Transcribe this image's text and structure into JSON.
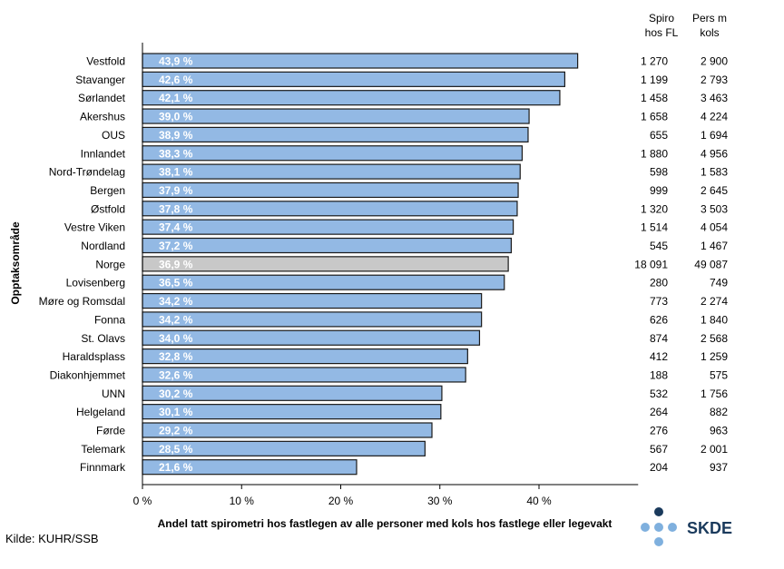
{
  "chart_data": {
    "type": "bar",
    "orientation": "horizontal",
    "categories": [
      "Vestfold",
      "Stavanger",
      "Sørlandet",
      "Akershus",
      "OUS",
      "Innlandet",
      "Nord-Trøndelag",
      "Bergen",
      "Østfold",
      "Vestre Viken",
      "Nordland",
      "Norge",
      "Lovisenberg",
      "Møre og Romsdal",
      "Fonna",
      "St. Olavs",
      "Haraldsplass",
      "Diakonhjemmet",
      "UNN",
      "Helgeland",
      "Førde",
      "Telemark",
      "Finnmark"
    ],
    "values": [
      43.9,
      42.6,
      42.1,
      39.0,
      38.9,
      38.3,
      38.1,
      37.9,
      37.8,
      37.4,
      37.2,
      36.9,
      36.5,
      34.2,
      34.2,
      34.0,
      32.8,
      32.6,
      30.2,
      30.1,
      29.2,
      28.5,
      21.6
    ],
    "value_labels": [
      "43,9 %",
      "42,6 %",
      "42,1 %",
      "39,0 %",
      "38,9 %",
      "38,3 %",
      "38,1 %",
      "37,9 %",
      "37,8 %",
      "37,4 %",
      "37,2 %",
      "36,9 %",
      "36,5 %",
      "34,2 %",
      "34,2 %",
      "34,0 %",
      "32,8 %",
      "32,6 %",
      "30,2 %",
      "30,1 %",
      "29,2 %",
      "28,5 %",
      "21,6 %"
    ],
    "highlight_category": "Norge",
    "xlabel": "Andel tatt spirometri hos fastlegen av alle personer med kols hos fastlege eller legevakt",
    "ylabel": "Opptaksområde",
    "xlim": [
      0,
      50
    ],
    "xticks": [
      0,
      10,
      20,
      30,
      40
    ],
    "xtick_labels": [
      "0 %",
      "10 %",
      "20 %",
      "30 %",
      "40 %"
    ],
    "grid": false,
    "colors": {
      "bar": "#93b9e4",
      "highlight": "#c8c8c8",
      "edge": "#1a1a1a"
    },
    "table_columns": [
      {
        "header": [
          "Spiro",
          "hos FL"
        ],
        "values": [
          "1 270",
          "1 199",
          "1 458",
          "1 658",
          "655",
          "1 880",
          "598",
          "999",
          "1 320",
          "1 514",
          "545",
          "18 091",
          "280",
          "773",
          "626",
          "874",
          "412",
          "188",
          "532",
          "264",
          "276",
          "567",
          "204"
        ]
      },
      {
        "header": [
          "Pers m",
          "kols"
        ],
        "values": [
          "2 900",
          "2 793",
          "3 463",
          "4 224",
          "1 694",
          "4 956",
          "1 583",
          "2 645",
          "3 503",
          "4 054",
          "1 467",
          "49 087",
          "749",
          "2 274",
          "1 840",
          "2 568",
          "1 259",
          "575",
          "1 756",
          "882",
          "963",
          "2 001",
          "937"
        ]
      }
    ]
  },
  "source": "Kilde: KUHR/SSB",
  "logo": {
    "text": "SKDE",
    "colors": {
      "dark": "#1a3a5c",
      "light": "#7fb0de"
    }
  }
}
